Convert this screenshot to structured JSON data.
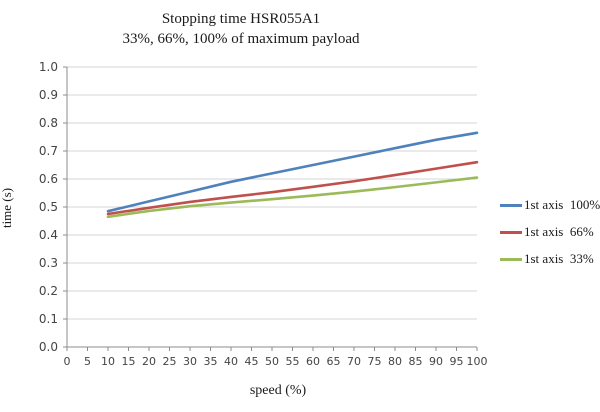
{
  "chart_data": {
    "type": "line",
    "title": "Stopping time HSR055A1",
    "subtitle": "33%, 66%, 100% of maximum payload",
    "xlabel": "speed (%)",
    "ylabel": "time (s)",
    "xlim": [
      0,
      100
    ],
    "ylim": [
      0.0,
      1.0
    ],
    "x_ticks": [
      0,
      5,
      10,
      15,
      20,
      25,
      30,
      35,
      40,
      45,
      50,
      55,
      60,
      65,
      70,
      75,
      80,
      85,
      90,
      95,
      100
    ],
    "y_ticks": [
      0.0,
      0.1,
      0.2,
      0.3,
      0.4,
      0.5,
      0.6,
      0.7,
      0.8,
      0.9,
      1.0
    ],
    "y_tick_labels": [
      "0.0",
      "0.1",
      "0.2",
      "0.3",
      "0.4",
      "0.5",
      "0.6",
      "0.7",
      "0.8",
      "0.9",
      "1.0"
    ],
    "grid": "horizontal",
    "legend_position": "right",
    "x": [
      10,
      20,
      30,
      40,
      50,
      60,
      70,
      80,
      90,
      100
    ],
    "series": [
      {
        "name": "1st axis  100%",
        "color": "#4F81BD",
        "values": [
          0.485,
          0.52,
          0.555,
          0.59,
          0.62,
          0.65,
          0.68,
          0.71,
          0.74,
          0.765
        ]
      },
      {
        "name": "1st axis  66%",
        "color": "#C0504D",
        "values": [
          0.475,
          0.497,
          0.518,
          0.536,
          0.553,
          0.572,
          0.592,
          0.614,
          0.637,
          0.66
        ]
      },
      {
        "name": "1st axis  33%",
        "color": "#9BBB59",
        "values": [
          0.465,
          0.486,
          0.503,
          0.516,
          0.528,
          0.541,
          0.555,
          0.571,
          0.588,
          0.605
        ]
      }
    ],
    "colors": {
      "gridline": "#D6D6D6",
      "axis": "#8C8C8C",
      "tick_label": "#444444",
      "title_text": "#1A1A1A"
    }
  }
}
